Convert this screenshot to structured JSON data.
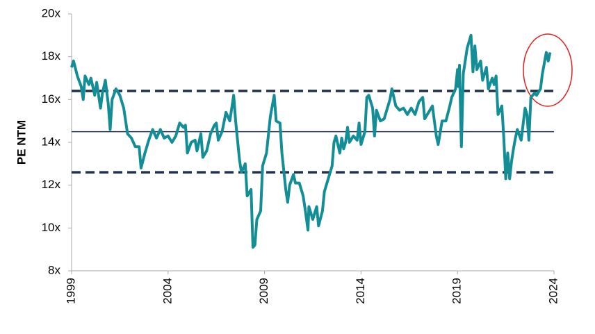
{
  "chart_data": {
    "type": "line",
    "y_label": "PE NTM",
    "xlim": [
      1999,
      2024
    ],
    "xticks": [
      1999,
      2004,
      2009,
      2014,
      2019,
      2024
    ],
    "ylim": [
      8,
      20
    ],
    "yticks": [
      {
        "value": 8,
        "label": "8x"
      },
      {
        "value": 10,
        "label": "10x"
      },
      {
        "value": 12,
        "label": "12x"
      },
      {
        "value": 14,
        "label": "14x"
      },
      {
        "value": 16,
        "label": "16x"
      },
      {
        "value": 18,
        "label": "18x"
      },
      {
        "value": 20,
        "label": "20x"
      }
    ],
    "reference_lines": [
      {
        "value": 16.4,
        "style": "dashed",
        "color": "#1f3050"
      },
      {
        "value": 14.5,
        "style": "solid",
        "color": "#1f3050"
      },
      {
        "value": 12.6,
        "style": "dashed",
        "color": "#1f3050"
      }
    ],
    "series": [
      {
        "color": "#138d96",
        "x": [
          1999.0,
          1999.1,
          1999.3,
          1999.5,
          1999.6,
          1999.7,
          1999.9,
          2000.0,
          2000.2,
          2000.3,
          2000.5,
          2000.6,
          2000.75,
          2000.9,
          2001.0,
          2001.1,
          2001.3,
          2001.5,
          2001.7,
          2001.9,
          2002.1,
          2002.3,
          2002.5,
          2002.6,
          2002.8,
          2003.0,
          2003.2,
          2003.4,
          2003.6,
          2003.8,
          2004.0,
          2004.2,
          2004.4,
          2004.6,
          2004.8,
          2004.9,
          2005.0,
          2005.2,
          2005.4,
          2005.5,
          2005.7,
          2005.8,
          2006.0,
          2006.2,
          2006.4,
          2006.5,
          2006.6,
          2006.8,
          2007.0,
          2007.2,
          2007.4,
          2007.5,
          2007.7,
          2007.8,
          2008.0,
          2008.1,
          2008.3,
          2008.4,
          2008.5,
          2008.6,
          2008.8,
          2008.9,
          2009.1,
          2009.3,
          2009.5,
          2009.6,
          2009.8,
          2009.9,
          2010.1,
          2010.2,
          2010.3,
          2010.5,
          2010.6,
          2010.8,
          2011.0,
          2011.1,
          2011.25,
          2011.3,
          2011.5,
          2011.7,
          2011.8,
          2012.0,
          2012.1,
          2012.3,
          2012.5,
          2012.6,
          2012.7,
          2012.9,
          2013.0,
          2013.1,
          2013.2,
          2013.3,
          2013.4,
          2013.6,
          2013.8,
          2013.9,
          2014.0,
          2014.2,
          2014.3,
          2014.4,
          2014.6,
          2014.7,
          2014.8,
          2015.0,
          2015.2,
          2015.5,
          2015.6,
          2015.8,
          2016.0,
          2016.2,
          2016.4,
          2016.6,
          2016.8,
          2017.0,
          2017.2,
          2017.3,
          2017.5,
          2017.7,
          2017.9,
          2018.0,
          2018.2,
          2018.4,
          2018.6,
          2018.7,
          2018.9,
          2019.0,
          2019.05,
          2019.1,
          2019.2,
          2019.3,
          2019.5,
          2019.7,
          2019.8,
          2019.9,
          2020.0,
          2020.2,
          2020.3,
          2020.5,
          2020.6,
          2020.8,
          2020.9,
          2021.0,
          2021.1,
          2021.3,
          2021.4,
          2021.5,
          2021.6,
          2021.7,
          2021.8,
          2021.9,
          2022.0,
          2022.1,
          2022.3,
          2022.5,
          2022.6,
          2022.7,
          2022.8,
          2023.0,
          2023.1,
          2023.3,
          2023.4,
          2023.6,
          2023.7,
          2023.8
        ],
        "values": [
          17.5,
          17.8,
          17.1,
          16.6,
          16.0,
          17.1,
          16.7,
          17.0,
          16.2,
          16.8,
          15.6,
          16.3,
          16.9,
          15.8,
          14.6,
          16.0,
          16.5,
          16.2,
          15.6,
          14.4,
          14.2,
          13.8,
          13.8,
          12.8,
          13.5,
          14.1,
          14.6,
          14.2,
          14.6,
          14.2,
          14.3,
          14.0,
          14.3,
          14.9,
          14.7,
          14.8,
          13.5,
          14.0,
          14.1,
          13.6,
          14.4,
          13.3,
          13.6,
          14.4,
          14.8,
          14.9,
          14.1,
          14.5,
          15.4,
          15.0,
          16.2,
          15.0,
          13.2,
          12.6,
          13.0,
          11.5,
          11.8,
          9.1,
          9.2,
          10.4,
          10.8,
          12.9,
          13.5,
          15.2,
          16.2,
          15.0,
          14.9,
          13.5,
          11.8,
          11.2,
          12.0,
          12.5,
          12.1,
          12.1,
          11.5,
          10.9,
          9.9,
          11.0,
          10.4,
          11.0,
          10.1,
          10.8,
          11.7,
          12.3,
          12.9,
          14.0,
          14.3,
          13.5,
          14.2,
          13.7,
          14.0,
          14.7,
          14.0,
          14.3,
          14.1,
          14.9,
          13.9,
          14.5,
          16.1,
          16.2,
          15.6,
          14.3,
          15.5,
          15.0,
          15.1,
          16.0,
          16.5,
          15.7,
          15.5,
          15.6,
          15.3,
          15.6,
          15.3,
          15.9,
          16.1,
          15.1,
          15.4,
          15.7,
          14.3,
          13.9,
          15.0,
          15.0,
          15.7,
          16.1,
          16.5,
          17.4,
          16.6,
          17.6,
          13.8,
          17.2,
          18.4,
          19.0,
          17.3,
          18.5,
          17.4,
          17.8,
          16.9,
          17.5,
          16.5,
          17.0,
          16.7,
          17.1,
          15.3,
          15.7,
          14.2,
          12.3,
          13.5,
          12.3,
          13.1,
          13.7,
          14.2,
          14.6,
          14.1,
          15.6,
          15.3,
          14.1,
          16.1,
          16.3,
          16.2,
          16.5,
          17.2,
          18.2,
          17.8,
          18.2
        ]
      }
    ]
  }
}
